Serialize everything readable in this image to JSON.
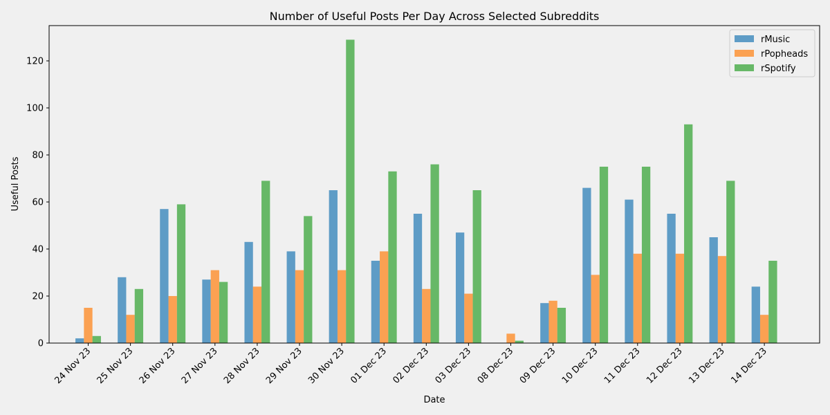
{
  "chart_data": {
    "type": "bar",
    "title": "Number of Useful Posts Per Day Across Selected Subreddits",
    "xlabel": "Date",
    "ylabel": "Useful Posts",
    "categories": [
      "24 Nov 23",
      "25 Nov 23",
      "26 Nov 23",
      "27 Nov 23",
      "28 Nov 23",
      "29 Nov 23",
      "30 Nov 23",
      "01 Dec 23",
      "02 Dec 23",
      "03 Dec 23",
      "08 Dec 23",
      "09 Dec 23",
      "10 Dec 23",
      "11 Dec 23",
      "12 Dec 23",
      "13 Dec 23",
      "14 Dec 23"
    ],
    "series": [
      {
        "name": "rMusic",
        "color": "#1f77b4",
        "values": [
          2,
          28,
          57,
          27,
          43,
          39,
          65,
          35,
          55,
          47,
          0,
          17,
          66,
          61,
          55,
          45,
          24
        ]
      },
      {
        "name": "rPopheads",
        "color": "#ff7f0e",
        "values": [
          15,
          12,
          20,
          31,
          24,
          31,
          31,
          39,
          23,
          21,
          4,
          18,
          29,
          38,
          38,
          37,
          12
        ]
      },
      {
        "name": "rSpotify",
        "color": "#2ca02c",
        "values": [
          3,
          23,
          59,
          26,
          69,
          54,
          129,
          73,
          76,
          65,
          1,
          15,
          75,
          75,
          93,
          69,
          35
        ]
      }
    ],
    "ylim": [
      0,
      135
    ],
    "yticks": [
      0,
      20,
      40,
      60,
      80,
      100,
      120
    ],
    "grid": false,
    "legend": "top-right"
  }
}
